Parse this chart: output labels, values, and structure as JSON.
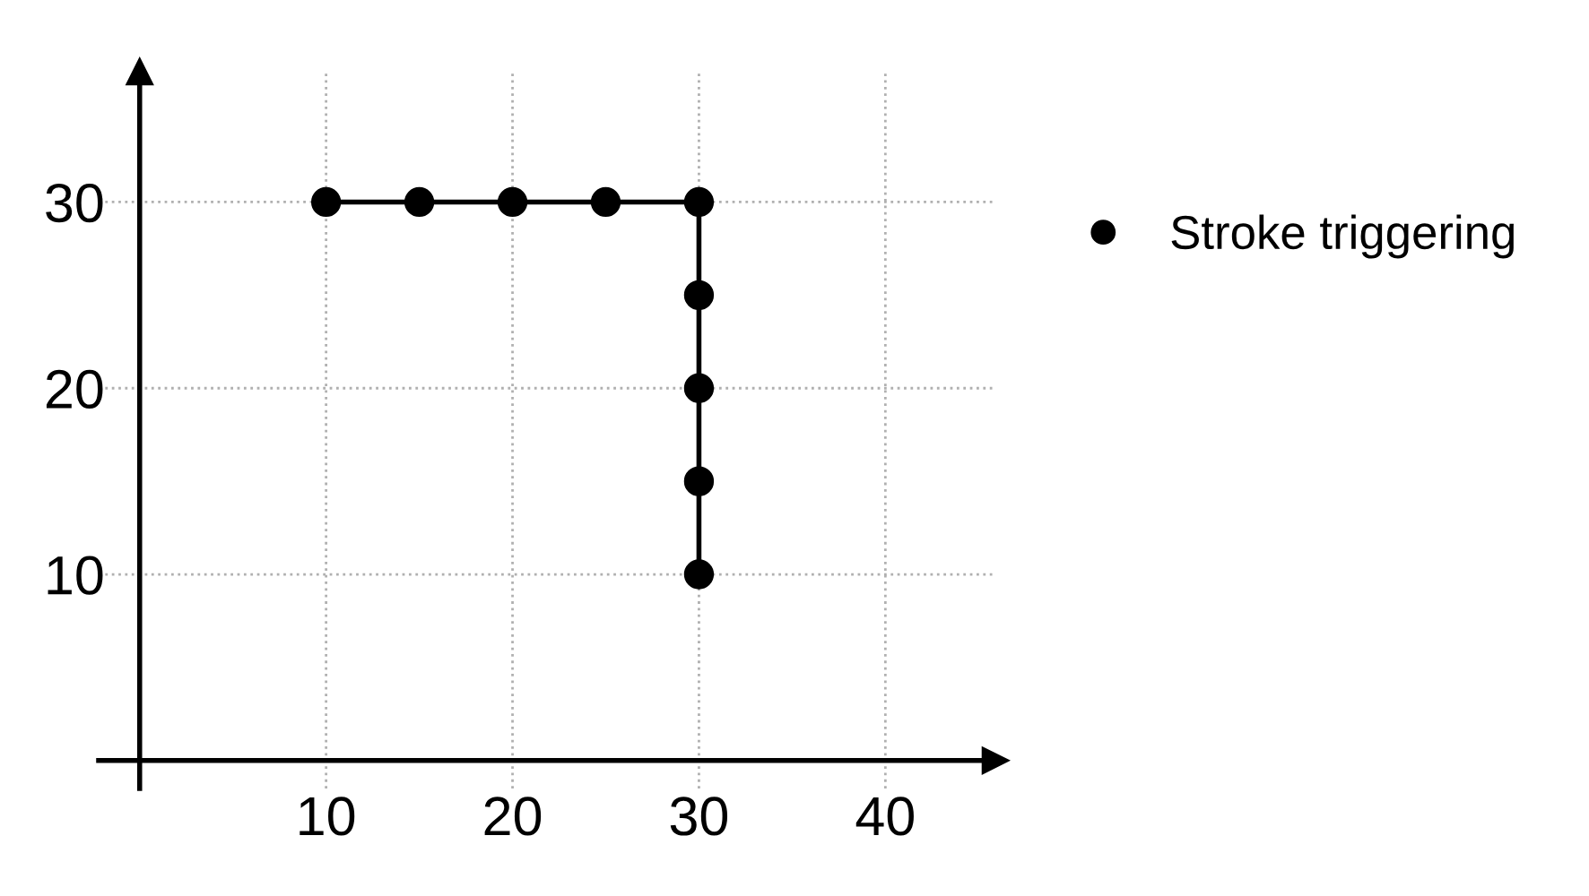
{
  "chart_data": {
    "type": "line",
    "x": [
      10,
      15,
      20,
      25,
      30,
      30,
      30,
      30,
      30
    ],
    "series": [
      {
        "name": "Stroke triggering",
        "color": "#000000",
        "values": [
          30,
          30,
          30,
          30,
          30,
          25,
          20,
          15,
          10
        ]
      }
    ],
    "xlim": [
      -2.2,
      45.9
    ],
    "ylim": [
      -1.5,
      37
    ],
    "xticks": [
      10,
      20,
      30,
      40
    ],
    "yticks": [
      10,
      20,
      30
    ],
    "grid": true,
    "legend": "right",
    "marker": "circle",
    "line_style": "solid"
  }
}
